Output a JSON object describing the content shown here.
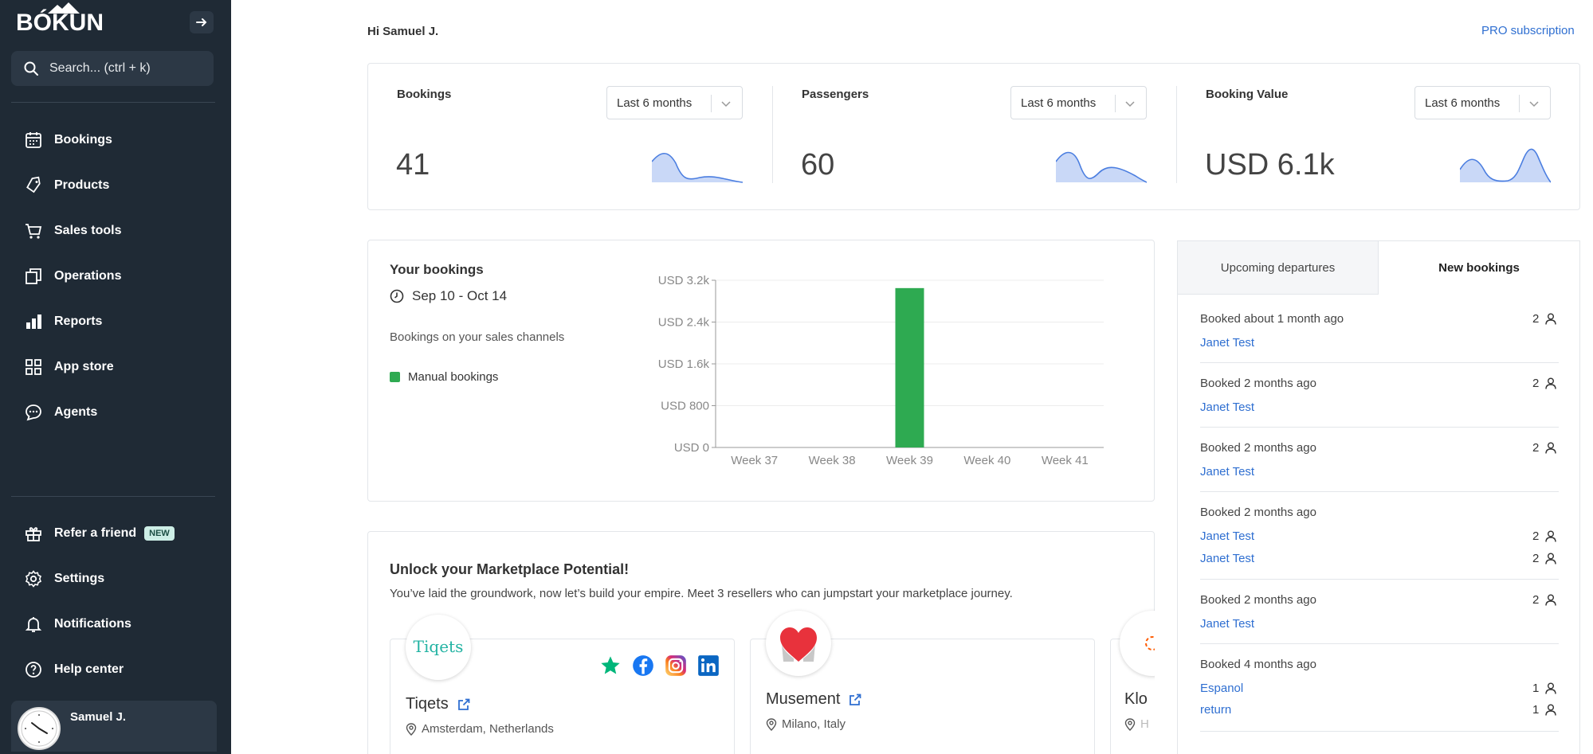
{
  "sidebar": {
    "logo": "BÓKUN",
    "search_placeholder": "Search... (ctrl + k)",
    "nav": [
      {
        "label": "Bookings",
        "icon": "calendar-icon"
      },
      {
        "label": "Products",
        "icon": "tag-icon"
      },
      {
        "label": "Sales tools",
        "icon": "cart-icon"
      },
      {
        "label": "Operations",
        "icon": "copy-icon"
      },
      {
        "label": "Reports",
        "icon": "bar-chart-icon"
      },
      {
        "label": "App store",
        "icon": "grid-icon"
      },
      {
        "label": "Agents",
        "icon": "chat-icon"
      }
    ],
    "bottom_nav": [
      {
        "label": "Refer a friend",
        "icon": "gift-icon",
        "badge": "NEW"
      },
      {
        "label": "Settings",
        "icon": "gear-icon"
      },
      {
        "label": "Notifications",
        "icon": "bell-icon"
      },
      {
        "label": "Help center",
        "icon": "help-icon"
      }
    ],
    "user": {
      "name": "Samuel J."
    }
  },
  "header": {
    "greeting": "Hi Samuel J.",
    "pro_link": "PRO subscription"
  },
  "stats": [
    {
      "title": "Bookings",
      "period": "Last 6 months",
      "value": "41"
    },
    {
      "title": "Passengers",
      "period": "Last 6 months",
      "value": "60"
    },
    {
      "title": "Booking Value",
      "period": "Last 6 months",
      "value": "USD 6.1k"
    }
  ],
  "your_bookings": {
    "title": "Your bookings",
    "date_range": "Sep 10 - Oct 14",
    "subtitle": "Bookings on your sales channels",
    "legend": "Manual bookings",
    "color": "#2eaa51"
  },
  "chart_data": {
    "type": "bar",
    "categories": [
      "Week 37",
      "Week 38",
      "Week 39",
      "Week 40",
      "Week 41"
    ],
    "series": [
      {
        "name": "Manual bookings",
        "values": [
          0,
          0,
          3050,
          0,
          0
        ]
      }
    ],
    "ylim": [
      0,
      3200
    ],
    "yticks": [
      0,
      800,
      1600,
      2400,
      3200
    ],
    "ytick_labels": [
      "USD 0",
      "USD 800",
      "USD 1.6k",
      "USD 2.4k",
      "USD 3.2k"
    ],
    "xlabel": "",
    "ylabel": "",
    "grid": true
  },
  "tabs": {
    "upcoming": "Upcoming departures",
    "new": "New bookings"
  },
  "new_bookings": [
    {
      "time": "Booked about 1 month ago",
      "entries": [
        {
          "name": "Janet Test",
          "count": "2"
        }
      ]
    },
    {
      "time": "Booked 2 months ago",
      "entries": [
        {
          "name": "Janet Test",
          "count": "2"
        }
      ]
    },
    {
      "time": "Booked 2 months ago",
      "entries": [
        {
          "name": "Janet Test",
          "count": "2"
        }
      ]
    },
    {
      "time": "Booked 2 months ago",
      "entries": [
        {
          "name": "Janet Test",
          "count": "2"
        },
        {
          "name": "Janet Test",
          "count": "2"
        }
      ]
    },
    {
      "time": "Booked 2 months ago",
      "entries": [
        {
          "name": "Janet Test",
          "count": "2"
        }
      ]
    },
    {
      "time": "Booked 4 months ago",
      "entries": [
        {
          "name": "Espanol",
          "count": "1"
        },
        {
          "name": "return",
          "count": "1"
        }
      ]
    }
  ],
  "marketplace": {
    "title": "Unlock your Marketplace Potential!",
    "subtitle": "You’ve laid the groundwork, now let’s build your empire. Meet 3 resellers who can jumpstart your marketplace journey.",
    "resellers": [
      {
        "name": "Tiqets",
        "logo_text": "Tiqets",
        "location": "Amsterdam, Netherlands"
      },
      {
        "name": "Musement",
        "location": "Milano, Italy"
      },
      {
        "name": "Klo",
        "location": "H"
      }
    ]
  }
}
